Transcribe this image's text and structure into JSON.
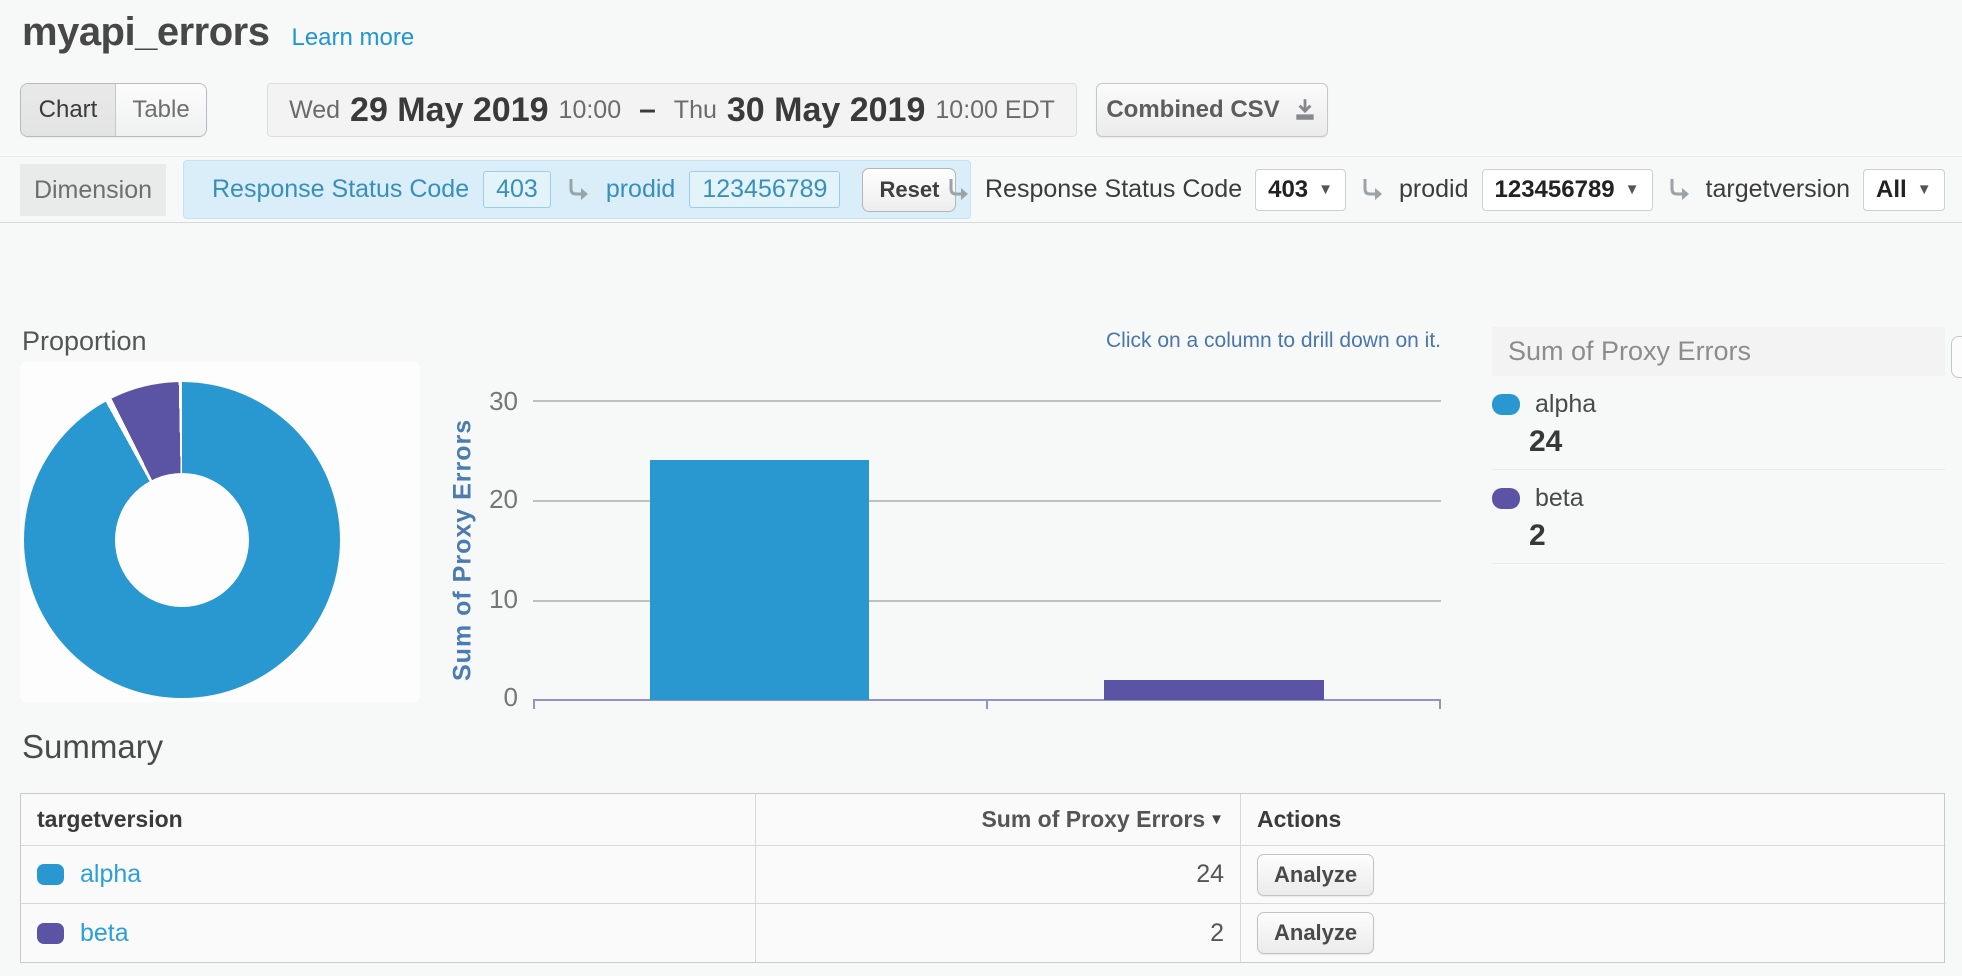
{
  "page": {
    "title": "myapi_errors",
    "learn_more": "Learn more"
  },
  "toolbar": {
    "view_toggle": {
      "chart_label": "Chart",
      "table_label": "Table",
      "active": "Chart"
    },
    "date_range": {
      "start_day": "Wed",
      "start_date": "29 May 2019",
      "start_time": "10:00",
      "separator": "–",
      "end_day": "Thu",
      "end_date": "30 May 2019",
      "end_time": "10:00 EDT"
    },
    "combined_csv_label": "Combined CSV"
  },
  "filter_bar": {
    "dimension_label": "Dimension",
    "applied_filters": [
      {
        "label": "Response Status Code",
        "value": "403"
      },
      {
        "label": "prodid",
        "value": "123456789"
      }
    ],
    "reset_label": "Reset",
    "dropdowns": [
      {
        "label": "Response Status Code",
        "value": "403"
      },
      {
        "label": "prodid",
        "value": "123456789"
      },
      {
        "label": "targetversion",
        "value": "All"
      }
    ]
  },
  "proportion_title": "Proportion",
  "chart_note": "Click on a column to drill down on it.",
  "legend": {
    "title": "Sum of Proxy Errors",
    "items": [
      {
        "name": "alpha",
        "value": "24"
      },
      {
        "name": "beta",
        "value": "2"
      }
    ]
  },
  "colors": {
    "alpha": "#2997d0",
    "beta": "#5b53a3",
    "link": "#2b9fd9",
    "note": "#4a76ad",
    "axis": "#9094c8"
  },
  "chart_data": [
    {
      "type": "pie",
      "title": "Proportion",
      "categories": [
        "alpha",
        "beta"
      ],
      "values": [
        24,
        2
      ],
      "colors": [
        "#2997d0",
        "#5b53a3"
      ],
      "donut": true
    },
    {
      "type": "bar",
      "categories": [
        "alpha",
        "beta"
      ],
      "values": [
        24,
        2
      ],
      "colors": [
        "#2997d0",
        "#5b53a3"
      ],
      "ylabel": "Sum of Proxy Errors",
      "ylim": [
        0,
        30
      ],
      "yticks": [
        "0",
        "10",
        "20",
        "30"
      ],
      "grid": true,
      "legend_position": "right"
    }
  ],
  "summary": {
    "title": "Summary",
    "columns": [
      "targetversion",
      "Sum of Proxy Errors",
      "Actions"
    ],
    "rows": [
      {
        "targetversion": "alpha",
        "sum_of_proxy_errors": "24",
        "action": "Analyze"
      },
      {
        "targetversion": "beta",
        "sum_of_proxy_errors": "2",
        "action": "Analyze"
      }
    ]
  }
}
